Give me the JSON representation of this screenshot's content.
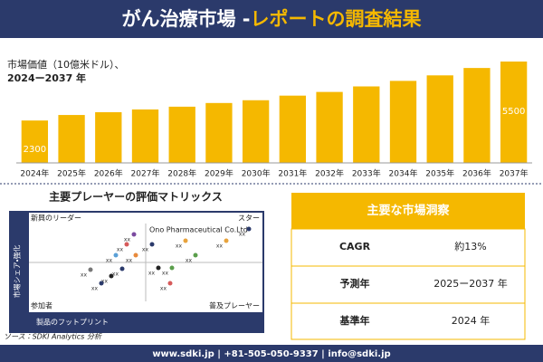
{
  "header": {
    "title_main": "がん治療市場 -",
    "title_accent": "レポートの調査結果"
  },
  "chart_data": {
    "type": "bar",
    "title_lines": [
      "市場価値（10億米ドル）、",
      "2024ー2037 年"
    ],
    "categories": [
      "2024年",
      "2025年",
      "2026年",
      "2027年",
      "2028年",
      "2029年",
      "2030年",
      "2031年",
      "2032年",
      "2033年",
      "2034年",
      "2035年",
      "2036年",
      "2037年"
    ],
    "values": [
      2300,
      2600,
      2750,
      2900,
      3050,
      3250,
      3400,
      3650,
      3850,
      4150,
      4450,
      4750,
      5150,
      5500
    ],
    "value_labels": [
      "2300",
      null,
      null,
      null,
      null,
      null,
      null,
      null,
      null,
      null,
      null,
      null,
      null,
      "5500"
    ],
    "color": "#f5b800"
  },
  "matrix": {
    "title": "主要プレーヤーの評価マトリックス",
    "quadrants": [
      "新興のリーダー",
      "スター",
      "参加者",
      "普及プレーヤー"
    ],
    "y_axis": "市場シェア・強化",
    "x_axis": "製品のフットプリント",
    "highlight": "Ono Pharmaceutical Co.Ltd",
    "points": [
      "xx",
      "xx",
      "xx",
      "xx",
      "xx",
      "xx",
      "xx",
      "xx",
      "xx",
      "xx",
      "xx",
      "xx",
      "xx",
      "xx",
      "xx",
      "xx"
    ]
  },
  "insights": {
    "title": "主要な市場洞察",
    "rows": [
      [
        "CAGR",
        "約13%"
      ],
      [
        "予測年",
        "2025ー2037 年"
      ],
      [
        "基準年",
        "2024 年"
      ]
    ]
  },
  "source": "ソース：SDKI Analytics 分析",
  "footer": "www.sdki.jp | +81-505-050-9337 | info@sdki.jp"
}
